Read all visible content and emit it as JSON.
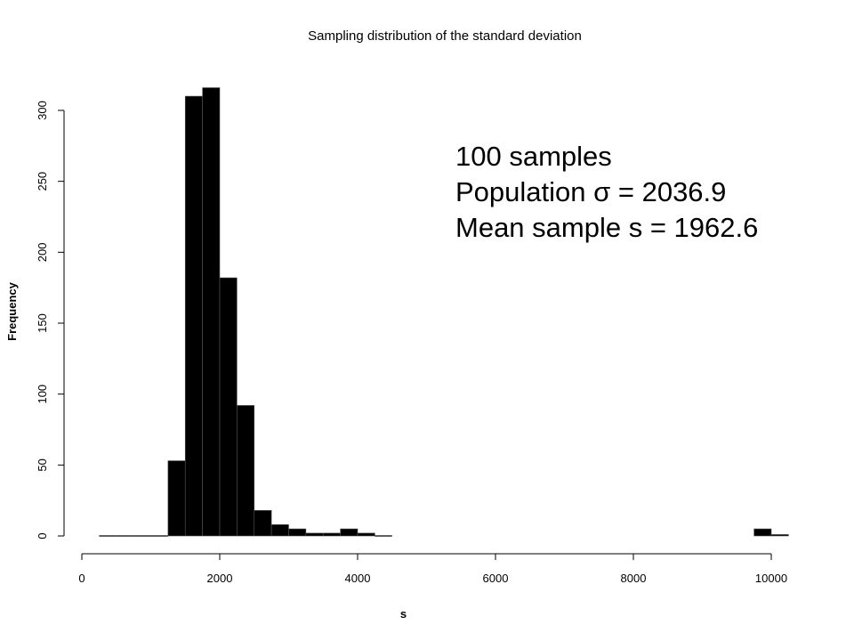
{
  "chart_data": {
    "type": "bar",
    "title": "Sampling distribution of the standard deviation",
    "xlabel": "s",
    "ylabel": "Frequency",
    "xlim": [
      0,
      10000
    ],
    "ylim": [
      0,
      300
    ],
    "x_ticks": [
      0,
      2000,
      4000,
      6000,
      8000,
      10000
    ],
    "y_ticks": [
      0,
      50,
      100,
      150,
      200,
      250,
      300
    ],
    "bin_width": 250,
    "bins": [
      {
        "start": 250,
        "count": 0
      },
      {
        "start": 500,
        "count": 0
      },
      {
        "start": 750,
        "count": 0
      },
      {
        "start": 1000,
        "count": 0
      },
      {
        "start": 1250,
        "count": 53
      },
      {
        "start": 1500,
        "count": 310
      },
      {
        "start": 1750,
        "count": 316
      },
      {
        "start": 2000,
        "count": 182
      },
      {
        "start": 2250,
        "count": 92
      },
      {
        "start": 2500,
        "count": 18
      },
      {
        "start": 2750,
        "count": 8
      },
      {
        "start": 3000,
        "count": 5
      },
      {
        "start": 3250,
        "count": 2
      },
      {
        "start": 3500,
        "count": 2
      },
      {
        "start": 3750,
        "count": 5
      },
      {
        "start": 4000,
        "count": 2
      },
      {
        "start": 4250,
        "count": 0
      },
      {
        "start": 9750,
        "count": 5
      },
      {
        "start": 10000,
        "count": 1
      }
    ],
    "annotations": [
      "100 samples",
      "Population σ = 2036.9",
      "Mean sample s = 1962.6"
    ],
    "grid": false,
    "bar_color": "#000000"
  }
}
